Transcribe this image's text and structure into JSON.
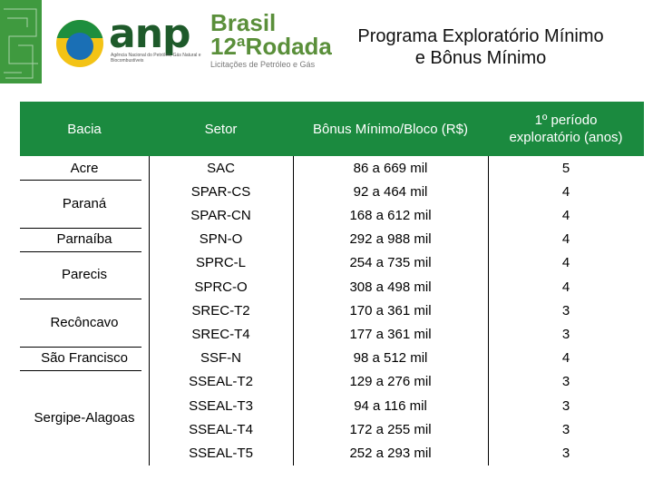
{
  "header": {
    "anp_word": "anp",
    "anp_sub": "Agência Nacional do Petróleo, Gás Natural e Biocombustíveis",
    "brand_line1": "Brasil",
    "brand_line2": "12ªRodada",
    "brand_sub": "Licitações de Petróleo e Gás",
    "title_line1": "Programa Exploratório Mínimo",
    "title_line2": "e Bônus Mínimo"
  },
  "colors": {
    "header_green": "#1b8a3f",
    "tab_green": "#3f9a3f",
    "brand_green": "#5a8f3a"
  },
  "table": {
    "columns": [
      "Bacia",
      "Setor",
      "Bônus Mínimo/Bloco (R$)",
      "1º período exploratório (anos)"
    ],
    "basins": [
      {
        "name": "Acre",
        "rows": 1
      },
      {
        "name": "Paraná",
        "rows": 2
      },
      {
        "name": "Parnaíba",
        "rows": 1
      },
      {
        "name": "Parecis",
        "rows": 2
      },
      {
        "name": "Recôncavo",
        "rows": 2
      },
      {
        "name": "São Francisco",
        "rows": 1
      },
      {
        "name": "Sergipe-Alagoas",
        "rows": 4
      }
    ],
    "rows": [
      {
        "setor": "SAC",
        "bonus": "86 a 669 mil",
        "periodo": "5"
      },
      {
        "setor": "SPAR-CS",
        "bonus": "92 a 464 mil",
        "periodo": "4"
      },
      {
        "setor": "SPAR-CN",
        "bonus": "168 a 612 mil",
        "periodo": "4"
      },
      {
        "setor": "SPN-O",
        "bonus": "292 a 988 mil",
        "periodo": "4"
      },
      {
        "setor": "SPRC-L",
        "bonus": "254 a 735 mil",
        "periodo": "4"
      },
      {
        "setor": "SPRC-O",
        "bonus": "308 a 498 mil",
        "periodo": "4"
      },
      {
        "setor": "SREC-T2",
        "bonus": "170 a 361 mil",
        "periodo": "3"
      },
      {
        "setor": "SREC-T4",
        "bonus": "177 a 361 mil",
        "periodo": "3"
      },
      {
        "setor": "SSF-N",
        "bonus": "98 a 512 mil",
        "periodo": "4"
      },
      {
        "setor": "SSEAL-T2",
        "bonus": "129 a 276 mil",
        "periodo": "3"
      },
      {
        "setor": "SSEAL-T3",
        "bonus": "94 a 116 mil",
        "periodo": "3"
      },
      {
        "setor": "SSEAL-T4",
        "bonus": "172 a 255 mil",
        "periodo": "3"
      },
      {
        "setor": "SSEAL-T5",
        "bonus": "252 a 293 mil",
        "periodo": "3"
      }
    ]
  }
}
